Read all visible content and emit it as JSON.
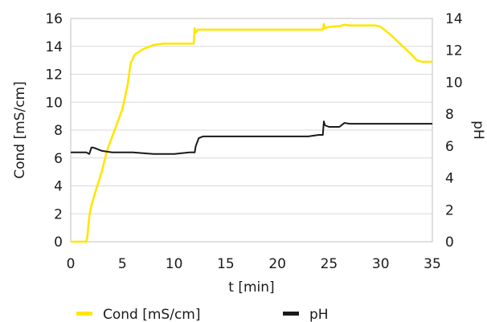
{
  "chart_data": {
    "type": "line",
    "xlabel": "t [min]",
    "ylabel": "Cond [mS/cm]",
    "y2label": "pH",
    "xlim": [
      0,
      35
    ],
    "ylim": [
      0,
      16
    ],
    "y2lim": [
      0,
      14
    ],
    "x_ticks": [
      "0",
      "5",
      "10",
      "15",
      "20",
      "25",
      "30",
      "35"
    ],
    "y_ticks": [
      "0",
      "2",
      "4",
      "6",
      "8",
      "10",
      "12",
      "14",
      "16"
    ],
    "y2_ticks": [
      "0",
      "2",
      "4",
      "6",
      "8",
      "10",
      "12",
      "14"
    ],
    "grid": "horizontal",
    "legend_position": "bottom",
    "series": [
      {
        "name": "Cond [mS/cm]",
        "axis": "left",
        "color": "#ffe600",
        "x": [
          0,
          1.5,
          1.6,
          1.8,
          2.0,
          2.4,
          3.0,
          3.5,
          4.0,
          4.5,
          5.0,
          5.5,
          5.8,
          6.2,
          7.0,
          8.0,
          9.0,
          10.0,
          11.0,
          11.9,
          12.0,
          12.1,
          12.3,
          13,
          15,
          20,
          24,
          24.4,
          24.5,
          24.6,
          25,
          26,
          26.5,
          27,
          28,
          29.5,
          30,
          31,
          32,
          33,
          33.5,
          34,
          35
        ],
        "y": [
          0,
          0,
          0.3,
          1.8,
          2.6,
          3.6,
          5.0,
          6.5,
          7.5,
          8.5,
          9.5,
          11.2,
          12.8,
          13.4,
          13.8,
          14.1,
          14.2,
          14.2,
          14.2,
          14.2,
          15.3,
          15.0,
          15.2,
          15.2,
          15.2,
          15.2,
          15.2,
          15.2,
          15.6,
          15.3,
          15.4,
          15.45,
          15.55,
          15.5,
          15.5,
          15.5,
          15.4,
          14.8,
          14.1,
          13.4,
          13.0,
          12.9,
          12.9
        ]
      },
      {
        "name": "pH",
        "axis": "right",
        "color": "#1a1a1a",
        "x": [
          0,
          1.5,
          1.8,
          2.0,
          2.2,
          3.0,
          4.0,
          5.0,
          6.0,
          7.0,
          8.0,
          9.0,
          10.0,
          11.5,
          12.0,
          12.1,
          12.4,
          12.8,
          13.0,
          15,
          20,
          23,
          24,
          24.4,
          24.5,
          24.6,
          25.0,
          25.5,
          26.0,
          26.4,
          26.5,
          27,
          30,
          35
        ],
        "y": [
          5.6,
          5.6,
          5.5,
          5.9,
          5.9,
          5.7,
          5.6,
          5.6,
          5.6,
          5.55,
          5.5,
          5.5,
          5.5,
          5.6,
          5.6,
          6.0,
          6.5,
          6.6,
          6.6,
          6.6,
          6.6,
          6.6,
          6.7,
          6.7,
          7.55,
          7.3,
          7.2,
          7.2,
          7.2,
          7.4,
          7.45,
          7.4,
          7.4,
          7.4
        ]
      }
    ]
  }
}
